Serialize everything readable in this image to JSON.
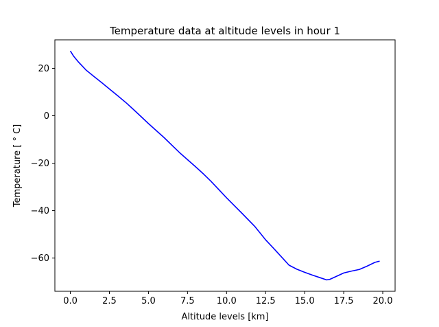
{
  "chart_data": {
    "type": "line",
    "title": "Temperature data at altitude levels in hour 1",
    "xlabel": "Altitude levels [km]",
    "ylabel": "Temperature [$^\\circ$C]",
    "ylabel_display": "Temperature [ ° C]",
    "xlim": [
      -0.99,
      20.79
    ],
    "ylim": [
      -74.0,
      32.0
    ],
    "xticks": [
      0.0,
      2.5,
      5.0,
      7.5,
      10.0,
      12.5,
      15.0,
      17.5,
      20.0
    ],
    "xtick_labels": [
      "0.0",
      "2.5",
      "5.0",
      "7.5",
      "10.0",
      "12.5",
      "15.0",
      "17.5",
      "20.0"
    ],
    "yticks": [
      -60,
      -40,
      -20,
      0,
      20
    ],
    "ytick_labels": [
      "−60",
      "−40",
      "−20",
      "0",
      "20"
    ],
    "grid": false,
    "series": [
      {
        "color": "#0000ff",
        "x": [
          0.0,
          0.2,
          0.5,
          1.0,
          1.5,
          2.0,
          2.5,
          3.0,
          3.6,
          4.0,
          4.6,
          5.0,
          6.0,
          7.0,
          8.0,
          8.5,
          9.0,
          10.0,
          11.0,
          11.8,
          12.5,
          13.0,
          13.5,
          14.0,
          14.5,
          15.0,
          15.5,
          16.0,
          16.4,
          16.6,
          17.0,
          17.5,
          18.0,
          18.5,
          19.0,
          19.5,
          19.8
        ],
        "y": [
          27.3,
          25.2,
          22.8,
          19.3,
          16.6,
          14.0,
          11.3,
          8.6,
          5.3,
          2.9,
          -0.8,
          -3.3,
          -9.2,
          -15.6,
          -21.4,
          -24.4,
          -27.6,
          -34.6,
          -41.2,
          -46.6,
          -52.3,
          -55.8,
          -59.4,
          -63.0,
          -64.7,
          -66.0,
          -67.2,
          -68.3,
          -69.2,
          -69.0,
          -67.8,
          -66.3,
          -65.5,
          -64.8,
          -63.4,
          -61.8,
          -61.3
        ]
      }
    ]
  }
}
